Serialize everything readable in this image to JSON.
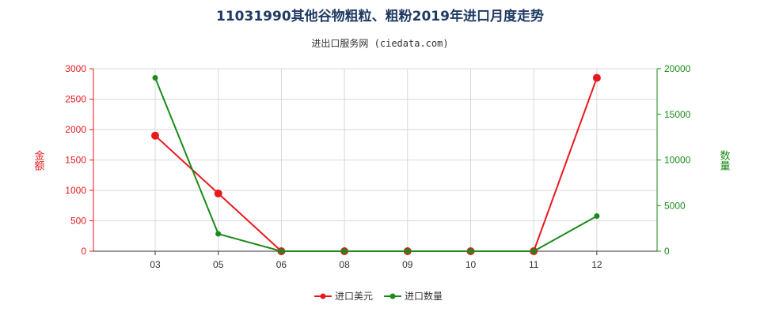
{
  "chart_data": {
    "type": "line",
    "title": "11031990其他谷物粗粒、粗粉2019年进口月度走势",
    "subtitle": "进出口服务网 (ciedata.com)",
    "categories": [
      "03",
      "05",
      "06",
      "08",
      "09",
      "10",
      "11",
      "12"
    ],
    "series": [
      {
        "name": "进口美元",
        "axis": "left",
        "color": "#e8191d",
        "values": [
          1900,
          950,
          0,
          0,
          0,
          0,
          0,
          2850
        ]
      },
      {
        "name": "进口数量",
        "axis": "right",
        "color": "#1a8a1a",
        "values": [
          19000,
          1900,
          0,
          0,
          0,
          0,
          0,
          3850
        ]
      }
    ],
    "y_left": {
      "label": "金额",
      "ticks": [
        0,
        500,
        1000,
        1500,
        2000,
        2500,
        3000
      ],
      "range": [
        0,
        3000
      ],
      "color": "#e8191d"
    },
    "y_right": {
      "label": "数量",
      "ticks": [
        0,
        5000,
        10000,
        15000,
        20000
      ],
      "range": [
        0,
        20000
      ],
      "color": "#1a8a1a"
    },
    "grid": true,
    "legend_position": "bottom-center"
  }
}
